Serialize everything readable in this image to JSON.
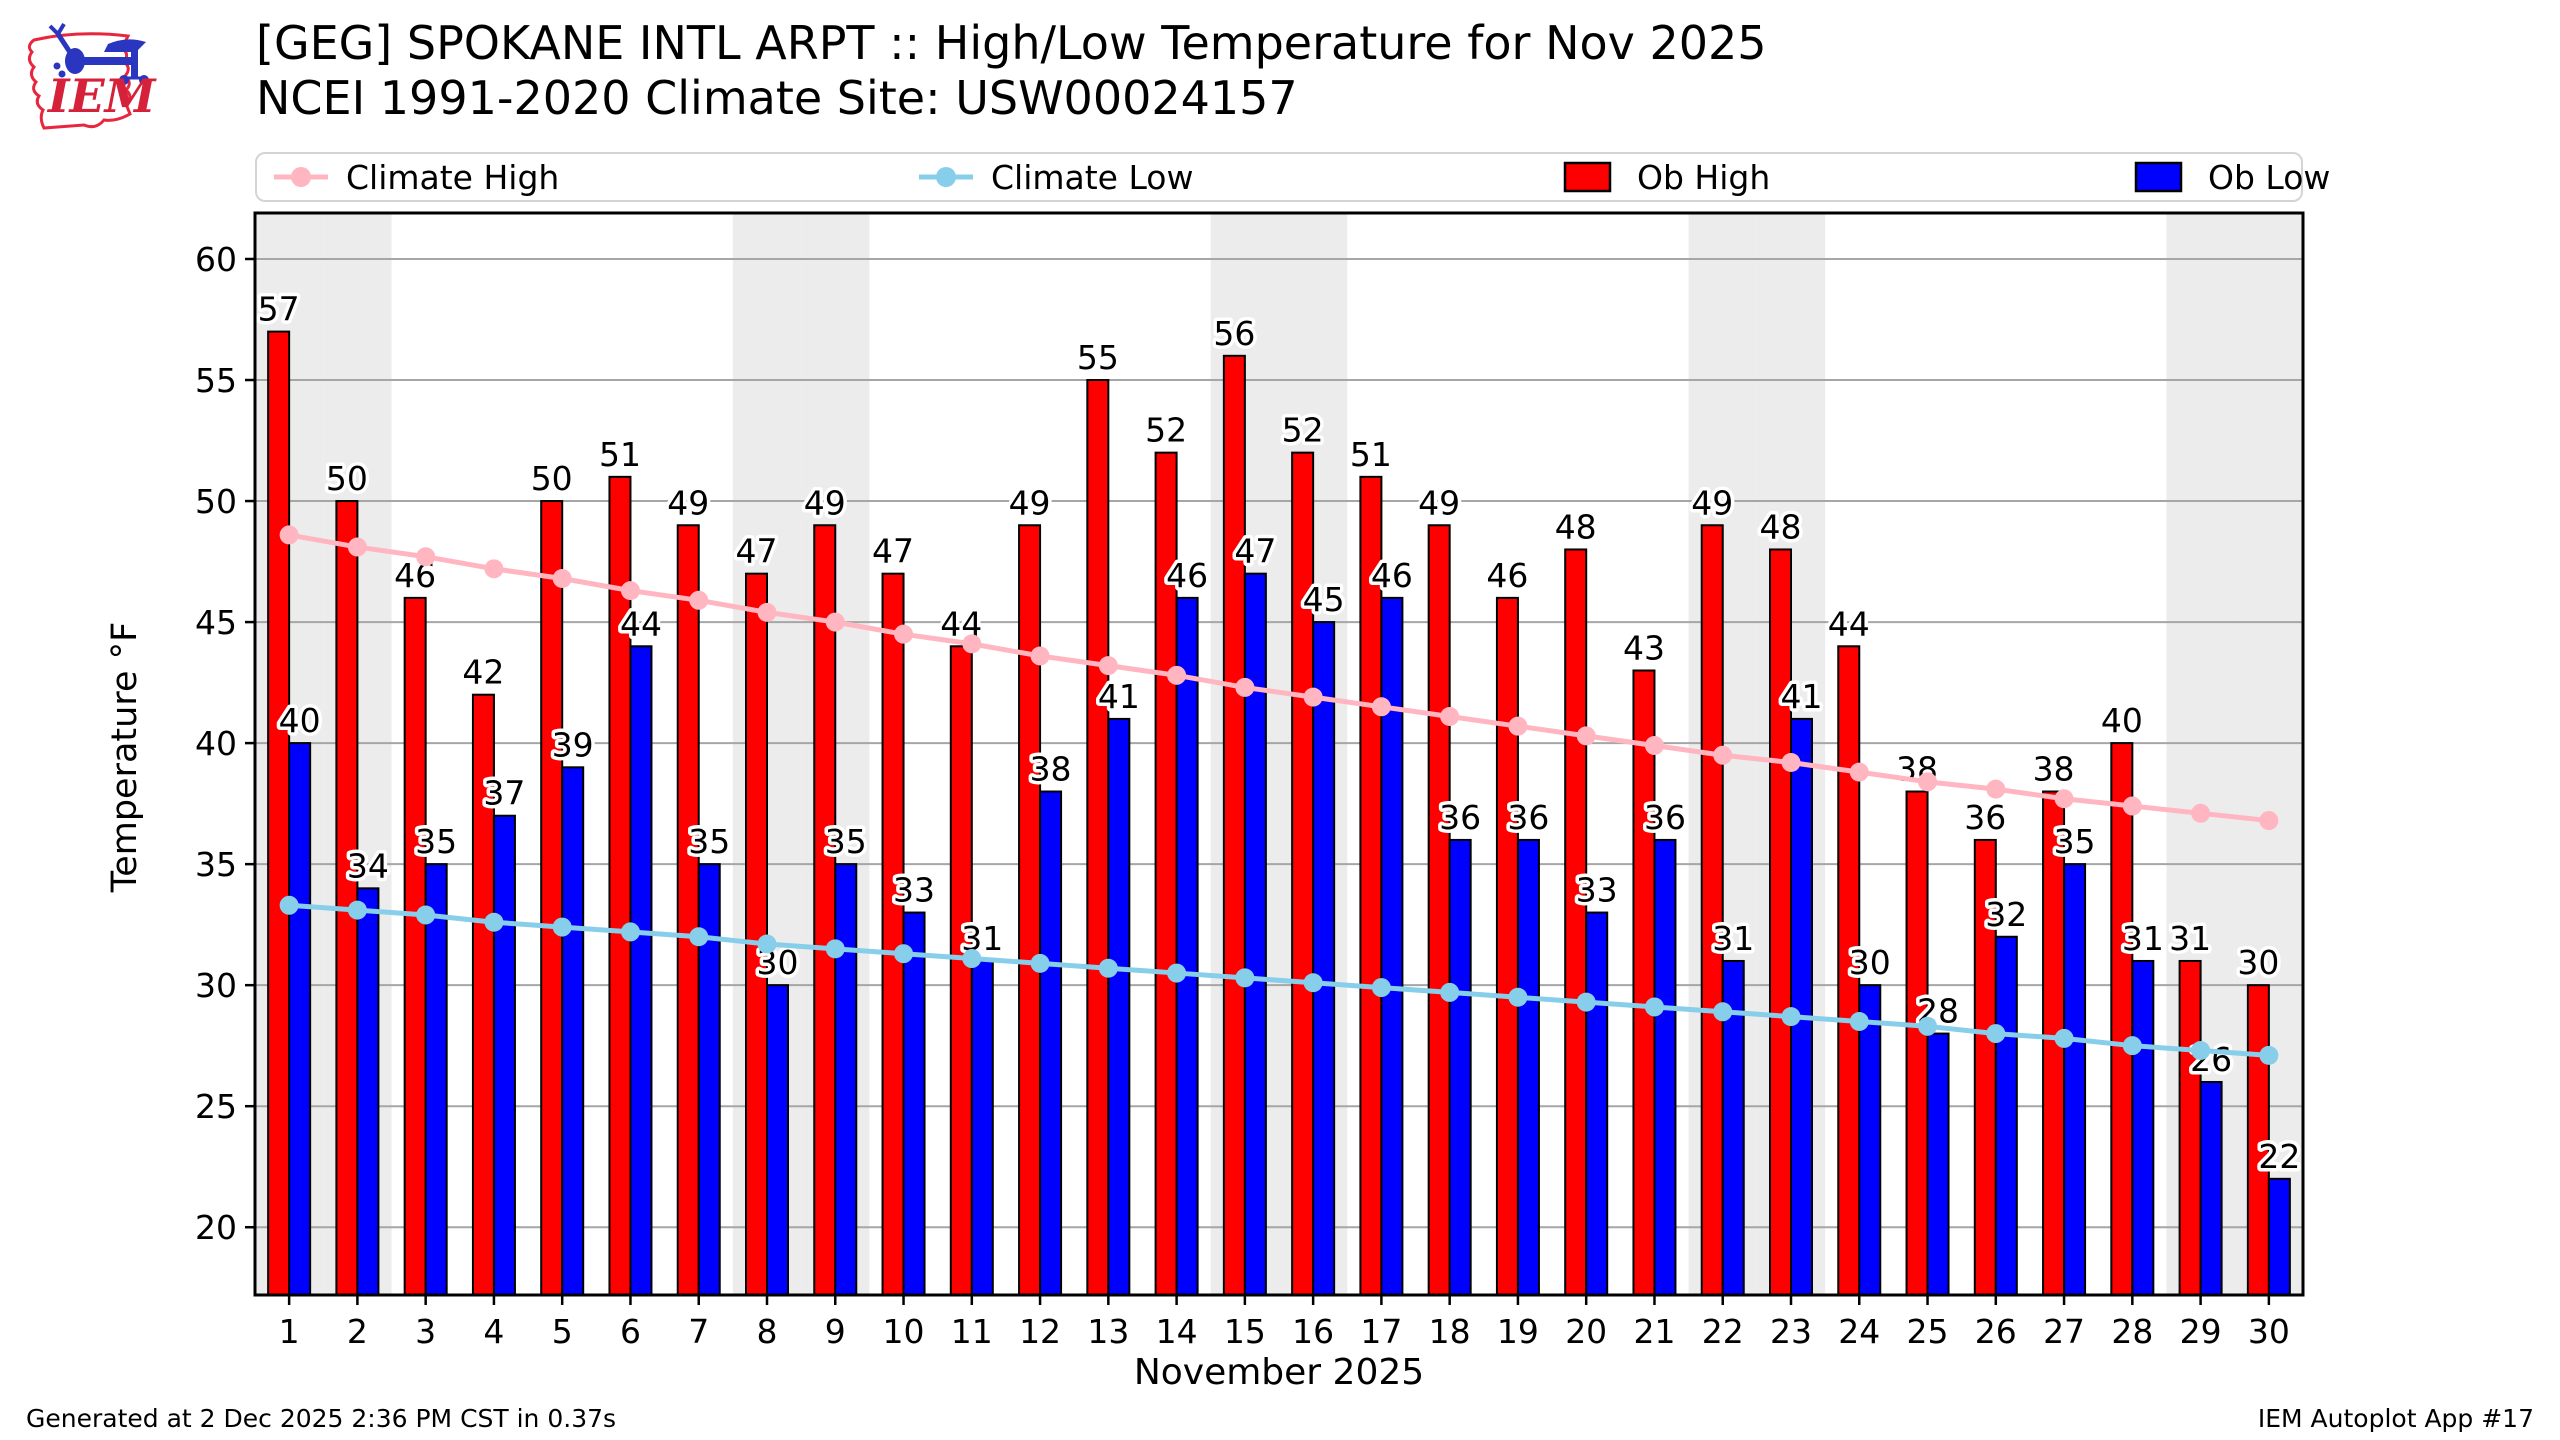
{
  "logo": {
    "text": "IEM"
  },
  "chart_data": {
    "type": "bar",
    "title": "[GEG] SPOKANE INTL ARPT :: High/Low Temperature for Nov 2025",
    "subtitle": "NCEI 1991-2020 Climate Site: USW00024157",
    "xlabel": "November 2025",
    "ylabel": "Temperature °F",
    "x": [
      1,
      2,
      3,
      4,
      5,
      6,
      7,
      8,
      9,
      10,
      11,
      12,
      13,
      14,
      15,
      16,
      17,
      18,
      19,
      20,
      21,
      22,
      23,
      24,
      25,
      26,
      27,
      28,
      29,
      30
    ],
    "series": [
      {
        "name": "Climate High",
        "type": "line",
        "color": "#ffb6c1",
        "values": [
          48.6,
          48.1,
          47.7,
          47.2,
          46.8,
          46.3,
          45.9,
          45.4,
          45.0,
          44.5,
          44.1,
          43.6,
          43.2,
          42.8,
          42.3,
          41.9,
          41.5,
          41.1,
          40.7,
          40.3,
          39.9,
          39.5,
          39.2,
          38.8,
          38.4,
          38.1,
          37.7,
          37.4,
          37.1,
          36.8
        ]
      },
      {
        "name": "Climate Low",
        "type": "line",
        "color": "#87ceeb",
        "values": [
          33.3,
          33.1,
          32.9,
          32.6,
          32.4,
          32.2,
          32.0,
          31.7,
          31.5,
          31.3,
          31.1,
          30.9,
          30.7,
          30.5,
          30.3,
          30.1,
          29.9,
          29.7,
          29.5,
          29.3,
          29.1,
          28.9,
          28.7,
          28.5,
          28.3,
          28.0,
          27.8,
          27.5,
          27.3,
          27.1
        ]
      },
      {
        "name": "Ob High",
        "type": "bar",
        "color": "#ff0000",
        "values": [
          57,
          50,
          46,
          42,
          50,
          51,
          49,
          47,
          49,
          47,
          44,
          49,
          55,
          52,
          56,
          52,
          51,
          49,
          46,
          48,
          43,
          49,
          48,
          44,
          38,
          36,
          38,
          40,
          31,
          30
        ]
      },
      {
        "name": "Ob Low",
        "type": "bar",
        "color": "#0000ff",
        "values": [
          40,
          34,
          35,
          37,
          39,
          44,
          35,
          30,
          35,
          33,
          31,
          38,
          41,
          46,
          47,
          45,
          46,
          36,
          36,
          33,
          36,
          31,
          41,
          30,
          28,
          32,
          35,
          31,
          26,
          22
        ]
      }
    ],
    "ylim": [
      17.2,
      61.9
    ],
    "yticks": [
      20,
      25,
      30,
      35,
      40,
      45,
      50,
      55,
      60
    ],
    "grid": true,
    "legend_position": "top",
    "weekend_days": [
      1,
      2,
      8,
      9,
      15,
      16,
      22,
      23,
      29,
      30
    ],
    "weekend_color": "#ececec"
  },
  "footer": {
    "left": "Generated at 2 Dec 2025 2:36 PM CST in 0.37s",
    "right": "IEM Autoplot App #17"
  }
}
